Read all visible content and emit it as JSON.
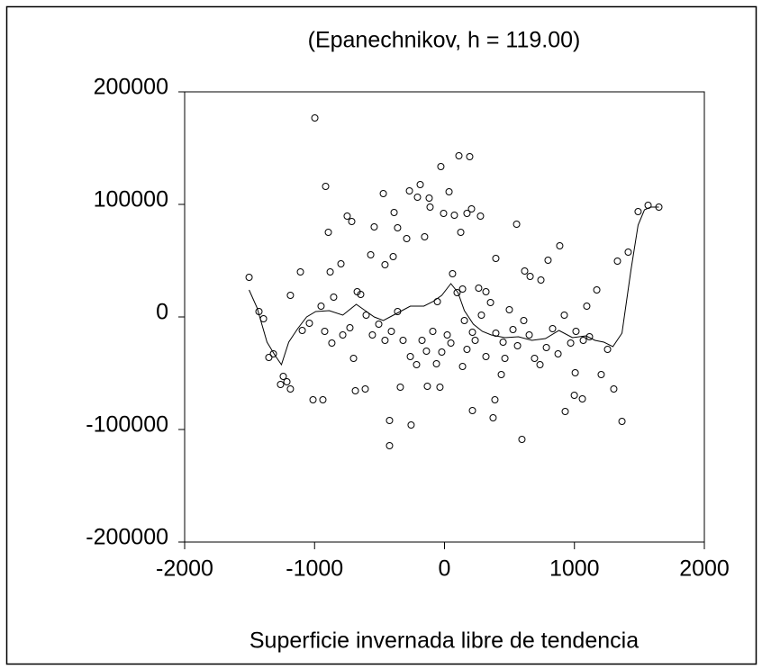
{
  "chart_data": {
    "type": "scatter",
    "title": "(Epanechnikov, h = 119.00)",
    "x_label": "Superficie invernada libre de tendencia",
    "xlim": [
      -2000,
      2000
    ],
    "xticks": [
      -2000,
      -1000,
      0,
      1000,
      2000
    ],
    "ylim": [
      -200000,
      200000
    ],
    "yticks": [
      -200000,
      -100000,
      0,
      100000,
      200000
    ],
    "series": [
      {
        "type": "scatter",
        "color": "#000000",
        "x": [
          -1504,
          -1428,
          -1393,
          -1352,
          -1317,
          -1262,
          -1241,
          -1213,
          -1186,
          -1186,
          -1109,
          -1095,
          -998,
          -1012,
          -936,
          -915,
          -894,
          -880,
          -853,
          -797,
          -749,
          -714,
          -672,
          -645,
          -686,
          -610,
          -541,
          -568,
          -471,
          -458,
          -395,
          -388,
          -423,
          -423,
          -361,
          -340,
          -291,
          -270,
          -257,
          -208,
          -187,
          -153,
          -118,
          -111,
          -132,
          -55,
          -28,
          -35,
          -7,
          35,
          62,
          76,
          111,
          125,
          139,
          153,
          194,
          173,
          208,
          215,
          236,
          277,
          284,
          319,
          388,
          374,
          395,
          437,
          465,
          555,
          617,
          596,
          659,
          742,
          797,
          887,
          929,
          1006,
          999,
          1061,
          1095,
          1172,
          1206,
          1255,
          1303,
          1331,
          1366,
          1414,
          1490,
          1567,
          1650,
          -1040,
          -950,
          -922,
          -867,
          -783,
          -728,
          -700,
          -603,
          -555,
          -506,
          -458,
          -409,
          -361,
          -319,
          -263,
          -215,
          -173,
          -139,
          -90,
          -62,
          -21,
          21,
          49,
          97,
          139,
          173,
          215,
          263,
          319,
          354,
          395,
          451,
          499,
          527,
          562,
          610,
          652,
          693,
          735,
          784,
          832,
          874,
          922,
          971,
          1012,
          1068,
          1116
        ],
        "values": [
          35200,
          4800,
          -1600,
          -36000,
          -32800,
          -60000,
          -52800,
          -57600,
          -64000,
          19200,
          40000,
          -12000,
          176800,
          -73600,
          -73600,
          116000,
          75200,
          40000,
          17600,
          47200,
          89600,
          84800,
          22400,
          20000,
          -65600,
          -64000,
          80000,
          55200,
          109600,
          46400,
          53600,
          92800,
          -92000,
          -114400,
          79200,
          -62400,
          69600,
          112000,
          -96000,
          106400,
          117600,
          71200,
          105600,
          97600,
          -61600,
          13600,
          133600,
          -62400,
          92000,
          111200,
          38400,
          90400,
          143200,
          75200,
          -44000,
          -3200,
          142400,
          92000,
          96000,
          -83200,
          -20800,
          89600,
          1600,
          -35200,
          -73600,
          -89600,
          52000,
          -51200,
          -36800,
          82400,
          40800,
          -108800,
          36000,
          32800,
          50400,
          63200,
          -84000,
          -49600,
          -69600,
          -72800,
          9600,
          24000,
          -51200,
          -28800,
          -64000,
          49600,
          -92800,
          57600,
          93600,
          99200,
          97600,
          -5600,
          9600,
          -12800,
          -23200,
          -16000,
          -9600,
          -36800,
          1600,
          -16000,
          -6400,
          -20800,
          -12800,
          4800,
          -20800,
          -35200,
          -42400,
          -20800,
          -30400,
          -12800,
          -41600,
          -31200,
          -16000,
          -23200,
          21600,
          24800,
          -28800,
          -13600,
          25600,
          22400,
          12800,
          -14400,
          -22400,
          6400,
          -11200,
          -25600,
          -3200,
          -16000,
          -36800,
          -42400,
          -27200,
          -10400,
          -32800,
          1600,
          -23200,
          -12800,
          -20800,
          -17600
        ]
      },
      {
        "type": "line",
        "color": "#000000",
        "x": [
          -1504,
          -1442,
          -1366,
          -1303,
          -1255,
          -1199,
          -1130,
          -1061,
          -991,
          -887,
          -783,
          -679,
          -610,
          -541,
          -471,
          -367,
          -263,
          -159,
          -90,
          -21,
          49,
          104,
          153,
          222,
          291,
          360,
          465,
          569,
          673,
          777,
          881,
          985,
          1089,
          1158,
          1227,
          1296,
          1366,
          1435,
          1490,
          1539,
          1587,
          1650
        ],
        "values": [
          24000,
          8000,
          -22400,
          -34400,
          -42400,
          -22400,
          -10400,
          0,
          4800,
          5600,
          1600,
          11200,
          5600,
          0,
          -3200,
          3200,
          9600,
          9600,
          13600,
          19200,
          29600,
          21600,
          5600,
          -6400,
          -12800,
          -16000,
          -18400,
          -17600,
          -20800,
          -19200,
          -12000,
          -18400,
          -16800,
          -20800,
          -22400,
          -26400,
          -14400,
          41600,
          81600,
          95200,
          97600,
          97600
        ]
      }
    ]
  }
}
